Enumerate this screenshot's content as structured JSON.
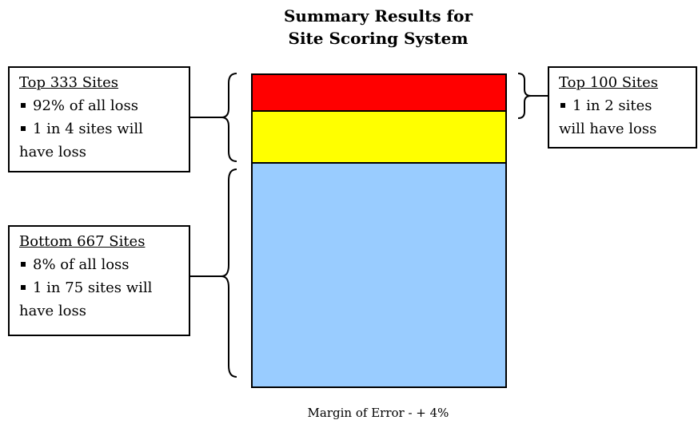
{
  "title": {
    "line1": "Summary Results for",
    "line2": "Site Scoring System"
  },
  "boxes": {
    "top333": {
      "heading": "Top 333 Sites",
      "bullet1": "92% of  all loss",
      "bullet2": "1 in 4 sites will",
      "bullet2_cont": "have loss"
    },
    "bottom667": {
      "heading": "Bottom 667 Sites",
      "bullet1": "8% of  all loss",
      "bullet2": "1 in 75 sites will",
      "bullet2_cont": "have loss"
    },
    "top100": {
      "heading": "Top 100 Sites",
      "bullet1": "1 in 2 sites",
      "bullet1_cont": "will have loss"
    }
  },
  "bar_segments": [
    {
      "name": "top-100",
      "color": "#ff0000"
    },
    {
      "name": "sites-101-333",
      "color": "#ffff00"
    },
    {
      "name": "bottom-667",
      "color": "#99ccff"
    }
  ],
  "footnote": "Margin of Error - + 4%"
}
